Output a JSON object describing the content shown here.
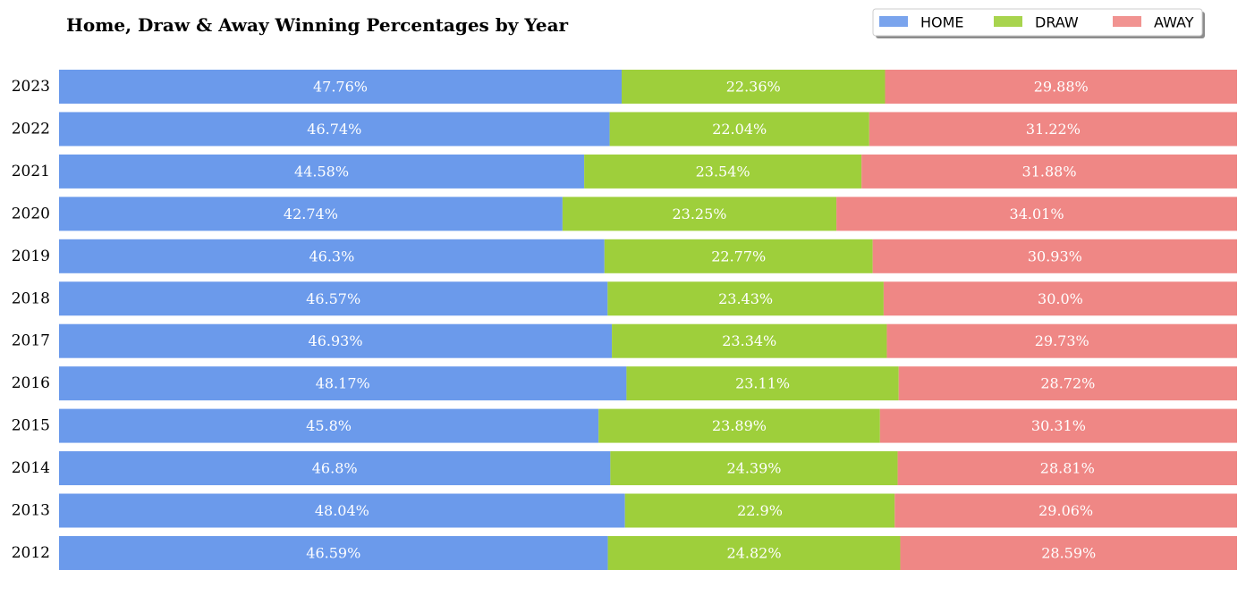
{
  "chart_data": {
    "type": "bar",
    "orientation": "horizontal",
    "stacked": true,
    "title": "Home, Draw & Away Winning Percentages by Year",
    "xlabel": "",
    "ylabel": "",
    "xlim": [
      0,
      100
    ],
    "grid": false,
    "legend_position": "top-right",
    "categories": [
      "2023",
      "2022",
      "2021",
      "2020",
      "2019",
      "2018",
      "2017",
      "2016",
      "2015",
      "2014",
      "2013",
      "2012"
    ],
    "series": [
      {
        "name": "HOME",
        "color": "#6b9aeb",
        "values": [
          47.76,
          46.74,
          44.58,
          42.74,
          46.3,
          46.57,
          46.93,
          48.17,
          45.8,
          46.8,
          48.04,
          46.59
        ],
        "labels": [
          "47.76%",
          "46.74%",
          "44.58%",
          "42.74%",
          "46.3%",
          "46.57%",
          "46.93%",
          "48.17%",
          "45.8%",
          "46.8%",
          "48.04%",
          "46.59%"
        ]
      },
      {
        "name": "DRAW",
        "color": "#9ecf3b",
        "values": [
          22.36,
          22.04,
          23.54,
          23.25,
          22.77,
          23.43,
          23.34,
          23.11,
          23.89,
          24.39,
          22.9,
          24.82
        ],
        "labels": [
          "22.36%",
          "22.04%",
          "23.54%",
          "23.25%",
          "22.77%",
          "23.43%",
          "23.34%",
          "23.11%",
          "23.89%",
          "24.39%",
          "22.9%",
          "24.82%"
        ]
      },
      {
        "name": "AWAY",
        "color": "#ef8785",
        "values": [
          29.88,
          31.22,
          31.88,
          34.01,
          30.93,
          30.0,
          29.73,
          28.72,
          30.31,
          28.81,
          29.06,
          28.59
        ],
        "labels": [
          "29.88%",
          "31.22%",
          "31.88%",
          "34.01%",
          "30.93%",
          "30.0%",
          "29.73%",
          "28.72%",
          "30.31%",
          "28.81%",
          "29.06%",
          "28.59%"
        ]
      }
    ]
  }
}
